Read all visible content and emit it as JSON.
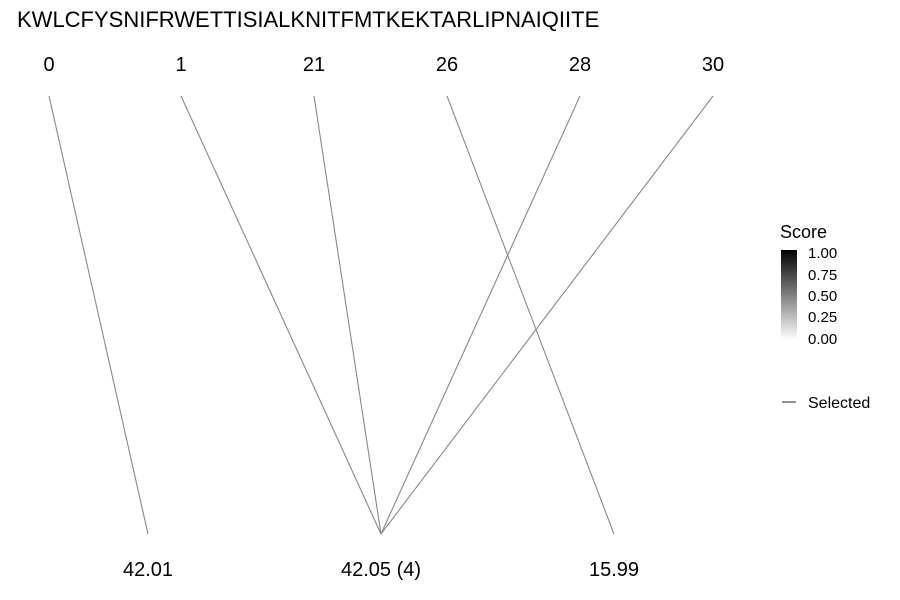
{
  "sequence_title": "KWLCFYSNIFRWETTISIALKNITFMTKEKTARLIPNAIQIITE",
  "top_positions": [
    "0",
    "1",
    "21",
    "26",
    "28",
    "30"
  ],
  "bottom_values": [
    "42.01",
    "42.05 (4)",
    "15.99"
  ],
  "links": [
    {
      "from": "0",
      "to": "42.01"
    },
    {
      "from": "1",
      "to": "42.05 (4)"
    },
    {
      "from": "21",
      "to": "42.05 (4)"
    },
    {
      "from": "26",
      "to": "15.99"
    },
    {
      "from": "28",
      "to": "42.05 (4)"
    },
    {
      "from": "30",
      "to": "42.05 (4)"
    }
  ],
  "legend": {
    "score_title": "Score",
    "score_ticks": [
      "1.00",
      "0.75",
      "0.50",
      "0.25",
      "0.00"
    ],
    "score_gradient": [
      "#000000",
      "#ffffff"
    ],
    "selected_label": "Selected"
  },
  "colors": {
    "line": "#888888"
  }
}
